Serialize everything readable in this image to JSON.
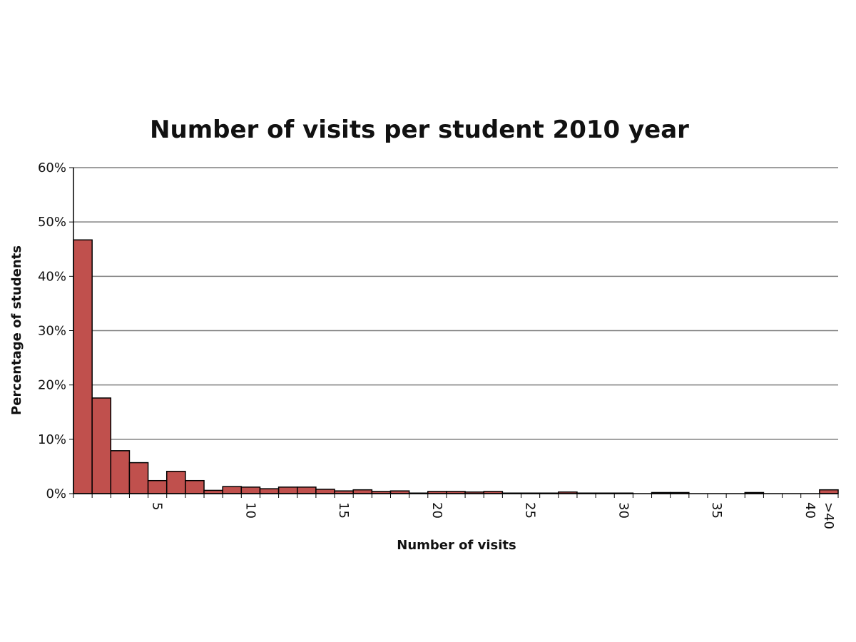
{
  "chart_data": {
    "type": "bar",
    "title": "Number of visits per student 2010 year",
    "xlabel": "Number of visits",
    "ylabel": "Percentage of students",
    "ylim": [
      0,
      60
    ],
    "y_ticks": [
      "0%",
      "10%",
      "20%",
      "30%",
      "40%",
      "50%",
      "60%"
    ],
    "x_tick_labels": [
      {
        "bin": 5,
        "label": "5"
      },
      {
        "bin": 10,
        "label": "10"
      },
      {
        "bin": 15,
        "label": "15"
      },
      {
        "bin": 20,
        "label": "20"
      },
      {
        "bin": 25,
        "label": "25"
      },
      {
        "bin": 30,
        "label": "30"
      },
      {
        "bin": 35,
        "label": "35"
      },
      {
        "bin": 40,
        "label": "40"
      },
      {
        "bin": 41,
        "label": ">40"
      }
    ],
    "categories": [
      "1",
      "2",
      "3",
      "4",
      "5",
      "6",
      "7",
      "8",
      "9",
      "10",
      "11",
      "12",
      "13",
      "14",
      "15",
      "16",
      "17",
      "18",
      "19",
      "20",
      "21",
      "22",
      "23",
      "24",
      "25",
      "26",
      "27",
      "28",
      "29",
      "30",
      "31",
      "32",
      "33",
      "34",
      "35",
      "36",
      "37",
      "38",
      "39",
      "40",
      ">40"
    ],
    "values": [
      46.7,
      17.6,
      7.9,
      5.7,
      2.4,
      4.1,
      2.4,
      0.6,
      1.3,
      1.2,
      0.9,
      1.2,
      1.2,
      0.8,
      0.5,
      0.7,
      0.4,
      0.5,
      0.1,
      0.4,
      0.4,
      0.3,
      0.4,
      0.1,
      0.1,
      0.1,
      0.3,
      0.1,
      0.1,
      0.1,
      0.0,
      0.2,
      0.2,
      0.0,
      0.0,
      0.0,
      0.2,
      0.0,
      0.0,
      0.0,
      0.7
    ],
    "grid": true,
    "bar_color": "#c0504d",
    "bar_edge_color": "#000000",
    "grid_color": "#7f7f7f"
  }
}
